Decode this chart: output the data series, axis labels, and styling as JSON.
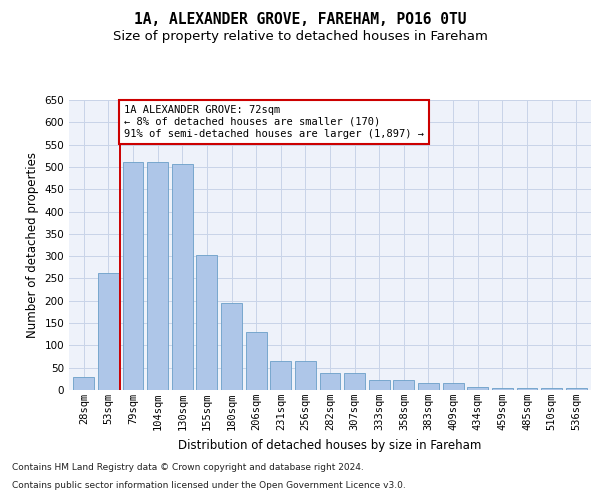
{
  "title1": "1A, ALEXANDER GROVE, FAREHAM, PO16 0TU",
  "title2": "Size of property relative to detached houses in Fareham",
  "xlabel": "Distribution of detached houses by size in Fareham",
  "ylabel": "Number of detached properties",
  "categories": [
    "28sqm",
    "53sqm",
    "79sqm",
    "104sqm",
    "130sqm",
    "155sqm",
    "180sqm",
    "206sqm",
    "231sqm",
    "256sqm",
    "282sqm",
    "307sqm",
    "333sqm",
    "358sqm",
    "383sqm",
    "409sqm",
    "434sqm",
    "459sqm",
    "485sqm",
    "510sqm",
    "536sqm"
  ],
  "values": [
    30,
    263,
    512,
    510,
    507,
    302,
    196,
    131,
    65,
    65,
    37,
    37,
    22,
    22,
    15,
    15,
    7,
    5,
    5,
    5,
    5
  ],
  "bar_color": "#aec6e8",
  "bar_edgecolor": "#6a9fc8",
  "grid_color": "#c8d4e8",
  "annotation_box_line_color": "#cc0000",
  "vline_color": "#cc0000",
  "annotation_text_line1": "1A ALEXANDER GROVE: 72sqm",
  "annotation_text_line2": "← 8% of detached houses are smaller (170)",
  "annotation_text_line3": "91% of semi-detached houses are larger (1,897) →",
  "footnote1": "Contains HM Land Registry data © Crown copyright and database right 2024.",
  "footnote2": "Contains public sector information licensed under the Open Government Licence v3.0.",
  "ylim": [
    0,
    650
  ],
  "yticks": [
    0,
    50,
    100,
    150,
    200,
    250,
    300,
    350,
    400,
    450,
    500,
    550,
    600,
    650
  ],
  "background_color": "#eef2fa",
  "title1_fontsize": 10.5,
  "title2_fontsize": 9.5,
  "axis_label_fontsize": 8.5,
  "tick_fontsize": 7.5,
  "annotation_fontsize": 7.5,
  "footnote_fontsize": 6.5
}
